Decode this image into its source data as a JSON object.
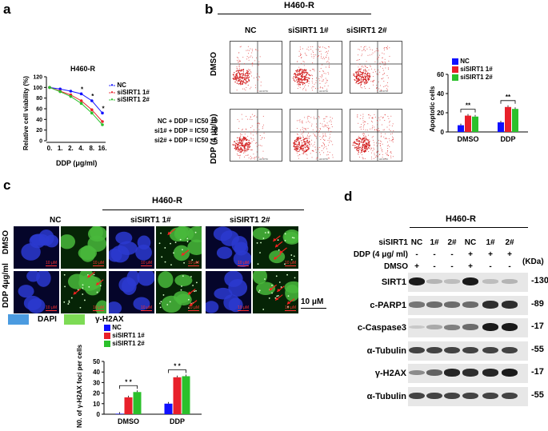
{
  "panel_labels": {
    "a": "a",
    "b": "b",
    "c": "c",
    "d": "d"
  },
  "panel_a": {
    "cell_line": "H460-R",
    "ylabel": "Relative cell viability (%)",
    "xlabel": "DDP (μg/ml)",
    "xticks": [
      "0.",
      "1.",
      "2.",
      "4.",
      "8.",
      "16."
    ],
    "yticks": [
      "0",
      "20",
      "40",
      "60",
      "80",
      "100",
      "120"
    ],
    "legend": [
      "NC",
      "siSIRT1 1#",
      "siSIRT1 2#"
    ],
    "ic50": [
      "NC + DDP = IC50 : 9",
      "si1# + DDP = IC50 : 6",
      "si2# + DDP = IC50 : 5"
    ],
    "stars": [
      "*",
      "*",
      "*"
    ],
    "colors": {
      "NC": "#1010ff",
      "si1": "#e8202a",
      "si2": "#2bc02b"
    }
  },
  "panel_b": {
    "group": "H460-R",
    "columns": [
      "NC",
      "siSIRT1 1#",
      "siSIRT1 2#"
    ],
    "rows": [
      "DMSO",
      "DDP (4 μg/m)"
    ],
    "axis_tick": "AV-FITC",
    "bar_legend": [
      "NC",
      "siSIRT1 1#",
      "siSIRT1 2#"
    ],
    "bar_ylabel": "Apoptotic cells",
    "bar_yticks": [
      "0",
      "20",
      "40",
      "60"
    ],
    "bar_groups": [
      "DMSO",
      "DDP"
    ],
    "sig": [
      "**",
      "**"
    ]
  },
  "panel_c": {
    "group": "H460-R",
    "columns": [
      "NC",
      "siSIRT1 1#",
      "siSIRT1 2#"
    ],
    "rows": [
      "DMSO",
      "DDP 4μg/ml"
    ],
    "scalebar_small": "10 μM",
    "scalebar_big": "10 μM",
    "stain_legend": [
      "DAPI",
      "γ-H2AX"
    ],
    "bar_legend": [
      "NC",
      "siSIRT1 1#",
      "siSIRT1 2#"
    ],
    "bar_ylabel": "N0. of γ-H2AX foci per cells",
    "bar_yticks": [
      "0",
      "10",
      "20",
      "30",
      "40",
      "50"
    ],
    "bar_groups": [
      "DMSO",
      "DDP"
    ],
    "sig": [
      "* *",
      "* *"
    ]
  },
  "panel_d": {
    "group": "H460-R",
    "header_rows": [
      {
        "label": "siSIRT1",
        "values": [
          "NC",
          "1#",
          "2#",
          "NC",
          "1#",
          "2#"
        ]
      },
      {
        "label": "DDP (4 μg/ ml)",
        "values": [
          "-",
          "-",
          "-",
          "+",
          "+",
          "+"
        ]
      },
      {
        "label": "DMSO",
        "values": [
          "+",
          "-",
          "-",
          "+",
          "-",
          "-"
        ]
      }
    ],
    "kda_label": "(KDa)",
    "blots": [
      {
        "name": "SIRT1",
        "kda": "-130"
      },
      {
        "name": "c-PARP1",
        "kda": "-89"
      },
      {
        "name": "c-Caspase3",
        "kda": "-17"
      },
      {
        "name": "α-Tubulin",
        "kda": "-55"
      },
      {
        "name": "γ-H2AX",
        "kda": "-17"
      },
      {
        "name": "α-Tubulin",
        "kda": "-55"
      }
    ]
  },
  "chart_data": [
    {
      "type": "line",
      "title": "H460-R",
      "xlabel": "DDP (μg/ml)",
      "ylabel": "Relative cell viability (%)",
      "categories": [
        "0.",
        "1.",
        "2.",
        "4.",
        "8.",
        "16."
      ],
      "ylim": [
        0,
        120
      ],
      "series": [
        {
          "name": "NC",
          "values": [
            100,
            97,
            93,
            88,
            75,
            52
          ]
        },
        {
          "name": "siSIRT1 1#",
          "values": [
            100,
            93,
            86,
            75,
            58,
            36
          ]
        },
        {
          "name": "siSIRT1 2#",
          "values": [
            100,
            92,
            83,
            70,
            52,
            30
          ]
        }
      ]
    },
    {
      "type": "bar",
      "ylabel": "Apoptotic cells",
      "categories": [
        "DMSO",
        "DDP"
      ],
      "ylim": [
        0,
        60
      ],
      "legend_position": "top-left",
      "series": [
        {
          "name": "NC",
          "values": [
            7,
            10
          ]
        },
        {
          "name": "siSIRT1 1#",
          "values": [
            17,
            26
          ]
        },
        {
          "name": "siSIRT1 2#",
          "values": [
            16,
            24
          ]
        }
      ]
    },
    {
      "type": "bar",
      "ylabel": "N0. of γ-H2AX foci per cells",
      "categories": [
        "DMSO",
        "DDP"
      ],
      "ylim": [
        0,
        50
      ],
      "legend_position": "top-left",
      "series": [
        {
          "name": "NC",
          "values": [
            0.5,
            10
          ]
        },
        {
          "name": "siSIRT1 1#",
          "values": [
            16,
            35
          ]
        },
        {
          "name": "siSIRT1 2#",
          "values": [
            21,
            36
          ]
        }
      ]
    }
  ]
}
